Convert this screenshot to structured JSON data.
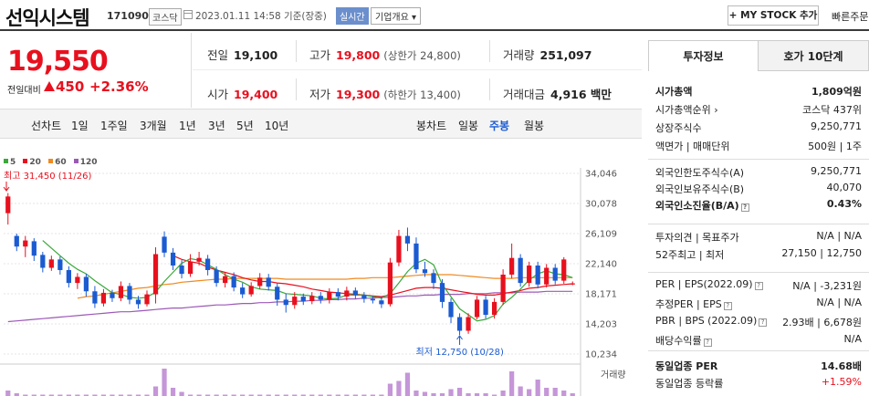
{
  "header": {
    "name": "선익시스템",
    "code": "171090",
    "market": "코스닥",
    "datetime": "2023.01.11 14:58 기준(장중)",
    "live": "실시간",
    "company_overview": "기업개요 ▾",
    "my_stock": "+ MY STOCK 추가",
    "quick_order": "빠른주문"
  },
  "price": {
    "current": "19,550",
    "diff_label": "전일대비",
    "diff": "450",
    "pct": "+2.36%"
  },
  "stats": {
    "prev_label": "전일",
    "prev": "19,100",
    "high_label": "고가",
    "high": "19,800",
    "upper_limit": "(상한가 24,800)",
    "volume_label": "거래량",
    "volume": "251,097",
    "open_label": "시가",
    "open": "19,400",
    "low_label": "저가",
    "low": "19,300",
    "lower_limit": "(하한가 13,400)",
    "amount_label": "거래대금",
    "amount": "4,916 백만"
  },
  "toolbar": {
    "line_chart": "선차트",
    "periods": [
      "1일",
      "1주일",
      "3개월",
      "1년",
      "3년",
      "5년",
      "10년"
    ],
    "candle_chart": "봉차트",
    "candle_periods": [
      "일봉",
      "주봉",
      "월봉"
    ],
    "active_candle": "주봉"
  },
  "chart_data": {
    "type": "candlestick",
    "legend": [
      {
        "name": "5",
        "color": "#3aa83a"
      },
      {
        "name": "20",
        "color": "#e8101e"
      },
      {
        "name": "60",
        "color": "#f08a20"
      },
      {
        "name": "120",
        "color": "#9b59b6"
      }
    ],
    "y_ticks": [
      34046,
      30078,
      26109,
      22140,
      18171,
      14203,
      10234
    ],
    "y_tick_labels": [
      "34,046",
      "30,078",
      "26,109",
      "22,140",
      "18,171",
      "14,203",
      "10,234"
    ],
    "high_annotation": "최고 31,450 (11/26)",
    "low_annotation": "최저 12,750 (10/28)",
    "volume_label": "거래량",
    "candles": [
      {
        "o": 28800,
        "c": 31000,
        "h": 31450,
        "l": 27300
      },
      {
        "o": 25800,
        "c": 24400,
        "h": 26100,
        "l": 23800
      },
      {
        "o": 24400,
        "c": 25200,
        "h": 25800,
        "l": 23000
      },
      {
        "o": 25100,
        "c": 23200,
        "h": 25500,
        "l": 22500
      },
      {
        "o": 23300,
        "c": 21600,
        "h": 23700,
        "l": 21000
      },
      {
        "o": 21600,
        "c": 22700,
        "h": 23200,
        "l": 21200
      },
      {
        "o": 22700,
        "c": 21300,
        "h": 23100,
        "l": 20700
      },
      {
        "o": 21300,
        "c": 19600,
        "h": 21800,
        "l": 19000
      },
      {
        "o": 19600,
        "c": 20400,
        "h": 20900,
        "l": 18800
      },
      {
        "o": 20400,
        "c": 18500,
        "h": 20800,
        "l": 17800
      },
      {
        "o": 18500,
        "c": 16900,
        "h": 19200,
        "l": 16300
      },
      {
        "o": 16900,
        "c": 18300,
        "h": 18800,
        "l": 16500
      },
      {
        "o": 18300,
        "c": 17600,
        "h": 18700,
        "l": 17100
      },
      {
        "o": 17600,
        "c": 19200,
        "h": 19800,
        "l": 17200
      },
      {
        "o": 19200,
        "c": 17400,
        "h": 19600,
        "l": 16800
      },
      {
        "o": 17400,
        "c": 16800,
        "h": 17900,
        "l": 16200
      },
      {
        "o": 16800,
        "c": 18100,
        "h": 18600,
        "l": 16500
      },
      {
        "o": 18100,
        "c": 23400,
        "h": 24300,
        "l": 16900
      },
      {
        "o": 25700,
        "c": 23600,
        "h": 26400,
        "l": 23000
      },
      {
        "o": 23600,
        "c": 21900,
        "h": 24200,
        "l": 21300
      },
      {
        "o": 21900,
        "c": 20800,
        "h": 22600,
        "l": 20200
      },
      {
        "o": 20800,
        "c": 22400,
        "h": 23400,
        "l": 20400
      },
      {
        "o": 22400,
        "c": 22900,
        "h": 23700,
        "l": 21900
      },
      {
        "o": 22800,
        "c": 21300,
        "h": 23300,
        "l": 20600
      },
      {
        "o": 21300,
        "c": 19600,
        "h": 21800,
        "l": 19100
      },
      {
        "o": 19600,
        "c": 20500,
        "h": 21000,
        "l": 19000
      },
      {
        "o": 20500,
        "c": 19000,
        "h": 21000,
        "l": 18500
      },
      {
        "o": 19000,
        "c": 18100,
        "h": 19600,
        "l": 17600
      },
      {
        "o": 18100,
        "c": 19200,
        "h": 19700,
        "l": 17800
      },
      {
        "o": 19200,
        "c": 20300,
        "h": 20900,
        "l": 18800
      },
      {
        "o": 20300,
        "c": 19100,
        "h": 20800,
        "l": 18600
      },
      {
        "o": 19100,
        "c": 17400,
        "h": 19600,
        "l": 16600
      },
      {
        "o": 17400,
        "c": 16700,
        "h": 18200,
        "l": 15700
      },
      {
        "o": 16700,
        "c": 17800,
        "h": 18400,
        "l": 16200
      },
      {
        "o": 17800,
        "c": 17200,
        "h": 18200,
        "l": 16700
      },
      {
        "o": 17200,
        "c": 17900,
        "h": 18400,
        "l": 16800
      },
      {
        "o": 17900,
        "c": 17400,
        "h": 18400,
        "l": 16900
      },
      {
        "o": 17400,
        "c": 18400,
        "h": 18900,
        "l": 16900
      },
      {
        "o": 18400,
        "c": 17800,
        "h": 18900,
        "l": 17300
      },
      {
        "o": 17800,
        "c": 18600,
        "h": 19100,
        "l": 17300
      },
      {
        "o": 18600,
        "c": 18000,
        "h": 19000,
        "l": 17500
      },
      {
        "o": 18000,
        "c": 17500,
        "h": 18400,
        "l": 17000
      },
      {
        "o": 17500,
        "c": 17300,
        "h": 17900,
        "l": 16900
      },
      {
        "o": 17300,
        "c": 16800,
        "h": 17800,
        "l": 16300
      },
      {
        "o": 16800,
        "c": 22300,
        "h": 22900,
        "l": 16500
      },
      {
        "o": 22300,
        "c": 25800,
        "h": 26600,
        "l": 21800
      },
      {
        "o": 25800,
        "c": 24800,
        "h": 26900,
        "l": 23800
      },
      {
        "o": 24800,
        "c": 21400,
        "h": 25600,
        "l": 20900
      },
      {
        "o": 21400,
        "c": 20900,
        "h": 22400,
        "l": 20400
      },
      {
        "o": 20900,
        "c": 19600,
        "h": 21400,
        "l": 18800
      },
      {
        "o": 19600,
        "c": 17100,
        "h": 20100,
        "l": 16300
      },
      {
        "o": 17100,
        "c": 15100,
        "h": 17600,
        "l": 14300
      },
      {
        "o": 15100,
        "c": 13300,
        "h": 15600,
        "l": 12750
      },
      {
        "o": 13300,
        "c": 15100,
        "h": 15600,
        "l": 12900
      },
      {
        "o": 15100,
        "c": 17400,
        "h": 17900,
        "l": 14800
      },
      {
        "o": 17400,
        "c": 15400,
        "h": 17900,
        "l": 14900
      },
      {
        "o": 15400,
        "c": 17100,
        "h": 17600,
        "l": 14900
      },
      {
        "o": 17100,
        "c": 20700,
        "h": 21400,
        "l": 16700
      },
      {
        "o": 20700,
        "c": 22900,
        "h": 24800,
        "l": 20200
      },
      {
        "o": 22900,
        "c": 19600,
        "h": 23400,
        "l": 19100
      },
      {
        "o": 19600,
        "c": 21900,
        "h": 22400,
        "l": 19100
      },
      {
        "o": 21900,
        "c": 19400,
        "h": 22400,
        "l": 18900
      },
      {
        "o": 19400,
        "c": 21600,
        "h": 22100,
        "l": 19000
      },
      {
        "o": 21600,
        "c": 19900,
        "h": 22100,
        "l": 19400
      },
      {
        "o": 19900,
        "c": 22700,
        "h": 23000,
        "l": 19500
      },
      {
        "o": 19400,
        "c": 19550,
        "h": 19800,
        "l": 19300
      }
    ],
    "ma5": [
      null,
      null,
      null,
      null,
      25200,
      24200,
      23200,
      22200,
      21400,
      20800,
      19900,
      19100,
      18300,
      18100,
      17700,
      17600,
      17700,
      18400,
      19800,
      21000,
      22200,
      22800,
      22600,
      22000,
      21400,
      20700,
      20100,
      19700,
      19100,
      18800,
      18700,
      18600,
      18200,
      18100,
      18000,
      17900,
      17600,
      17500,
      17600,
      18000,
      18000,
      18000,
      17800,
      17600,
      18200,
      19600,
      21100,
      22200,
      22700,
      22000,
      19400,
      17800,
      16200,
      15400,
      14600,
      14800,
      15300,
      16800,
      17700,
      18800,
      20000,
      20800,
      21200,
      20800,
      20700,
      20300
    ],
    "ma20": [
      null,
      null,
      null,
      null,
      null,
      null,
      null,
      null,
      null,
      null,
      null,
      null,
      null,
      null,
      null,
      null,
      null,
      null,
      null,
      23200,
      22700,
      22400,
      22200,
      21700,
      21300,
      21000,
      20700,
      20300,
      20000,
      19800,
      19800,
      19600,
      19500,
      19300,
      19100,
      18800,
      18600,
      18400,
      18300,
      18200,
      18100,
      18000,
      17900,
      17800,
      18000,
      18300,
      18600,
      18900,
      19000,
      19000,
      18900,
      18700,
      18500,
      18300,
      18100,
      18000,
      18000,
      18200,
      18400,
      18600,
      18900,
      19000,
      19200,
      19300,
      19400,
      19500
    ],
    "ma60": [
      null,
      null,
      null,
      null,
      null,
      null,
      null,
      null,
      17600,
      17800,
      17900,
      18100,
      18300,
      18500,
      18700,
      18900,
      19000,
      19200,
      19400,
      19500,
      19700,
      19800,
      19900,
      20000,
      20100,
      20100,
      20200,
      20200,
      20200,
      20200,
      20200,
      20200,
      20100,
      20100,
      20100,
      20100,
      20100,
      20100,
      20100,
      20100,
      20200,
      20200,
      20300,
      20300,
      20300,
      20400,
      20500,
      20600,
      20700,
      20700,
      20700,
      20700,
      20600,
      20500,
      20400,
      20300,
      20200,
      20200,
      20200,
      20300,
      20300,
      20300,
      20300,
      20300,
      20300,
      20300
    ],
    "ma120": [
      14500,
      14600,
      14700,
      14800,
      14900,
      15000,
      15100,
      15200,
      15300,
      15400,
      15500,
      15600,
      15700,
      15800,
      15800,
      15900,
      16000,
      16100,
      16200,
      16300,
      16300,
      16400,
      16500,
      16600,
      16700,
      16700,
      16800,
      16900,
      16900,
      17000,
      17000,
      17100,
      17100,
      17200,
      17200,
      17300,
      17300,
      17400,
      17400,
      17500,
      17500,
      17600,
      17600,
      17700,
      17700,
      17800,
      17900,
      17900,
      18000,
      18000,
      18100,
      18100,
      18100,
      18200,
      18200,
      18200,
      18300,
      18300,
      18300,
      18400,
      18400,
      18400,
      18500,
      18500,
      18500,
      18500
    ],
    "volume": [
      0.2,
      0.1,
      0.05,
      0.05,
      0.05,
      0.05,
      0.05,
      0.05,
      0.05,
      0.05,
      0.05,
      0.05,
      0.05,
      0.05,
      0.05,
      0.05,
      0.05,
      0.35,
      1.0,
      0.3,
      0.15,
      0.05,
      0.05,
      0.05,
      0.05,
      0.05,
      0.05,
      0.05,
      0.05,
      0.05,
      0.05,
      0.05,
      0.05,
      0.05,
      0.05,
      0.05,
      0.05,
      0.05,
      0.05,
      0.05,
      0.05,
      0.05,
      0.05,
      0.05,
      0.45,
      0.55,
      0.85,
      0.2,
      0.15,
      0.1,
      0.1,
      0.25,
      0.3,
      0.1,
      0.1,
      0.1,
      0.05,
      0.2,
      0.9,
      0.35,
      0.25,
      0.6,
      0.3,
      0.3,
      0.2,
      0.1
    ]
  },
  "right": {
    "tab_invest": "투자정보",
    "tab_orderbook": "호가 10단계",
    "rows1": [
      {
        "k": "시가총액",
        "v": "1,809억원"
      },
      {
        "k": "시가총액순위 ›",
        "v": "코스닥 437위"
      },
      {
        "k": "상장주식수",
        "v": "9,250,771"
      },
      {
        "k": "액면가 | 매매단위",
        "v": "500원 | 1주"
      }
    ],
    "rows2": [
      {
        "k": "외국인한도주식수(A)",
        "v": "9,250,771"
      },
      {
        "k": "외국인보유주식수(B)",
        "v": "40,070"
      },
      {
        "k": "외국인소진율(B/A)",
        "v": "0.43%"
      }
    ],
    "rows3": [
      {
        "k": "투자의견 | 목표주가",
        "v": "N/A | N/A"
      },
      {
        "k": "52주최고 | 최저",
        "v": "27,150 | 12,750"
      }
    ],
    "rows4": [
      {
        "k": "PER | EPS(2022.09)",
        "v": "N/A | -3,231원"
      },
      {
        "k": "추정PER | EPS",
        "v": "N/A | N/A"
      },
      {
        "k": "PBR | BPS (2022.09)",
        "v": "2.93배 | 6,678원"
      },
      {
        "k": "배당수익률",
        "v": "N/A"
      }
    ],
    "rows5": [
      {
        "k": "동일업종 PER",
        "v": "14.68배"
      },
      {
        "k": "동일업종 등락률",
        "v": "+1.59%"
      }
    ]
  }
}
